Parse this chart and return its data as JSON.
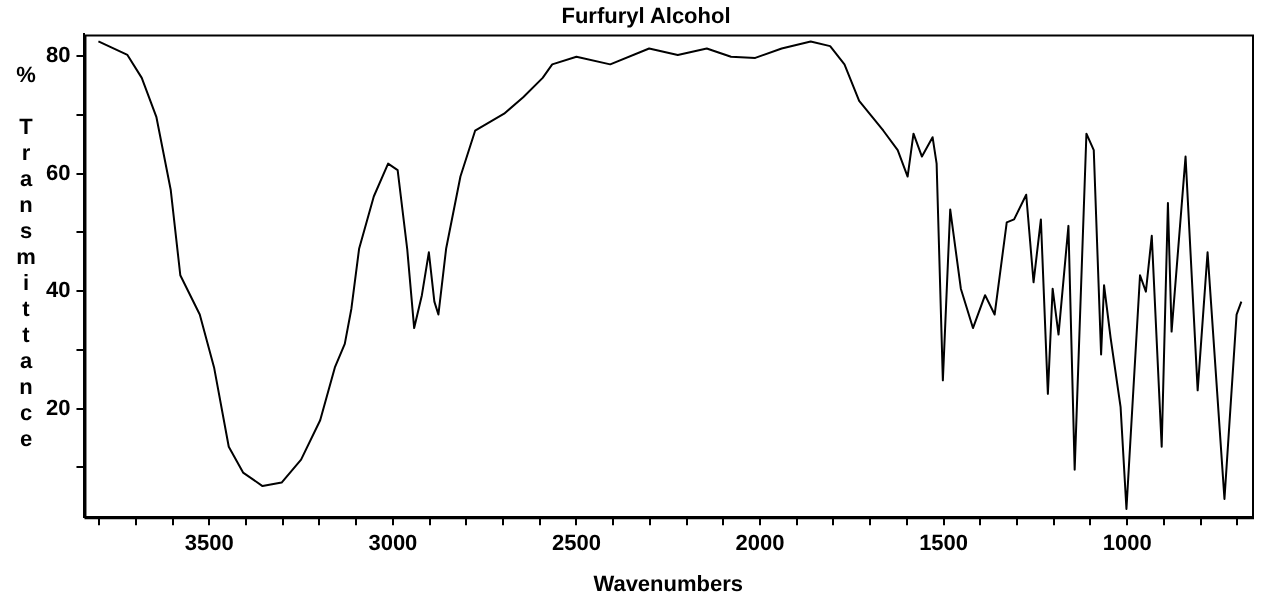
{
  "chart_data": {
    "type": "line",
    "title": "Furfuryl Alcohol",
    "xlabel": "Wavenumbers",
    "ylabel": "% Transmittance",
    "x": [
      3802,
      3723,
      3684,
      3644,
      3605,
      3579,
      3526,
      3487,
      3447,
      3408,
      3355,
      3303,
      3250,
      3198,
      3158,
      3131,
      3113,
      3092,
      3052,
      3013,
      2987,
      2961,
      2942,
      2921,
      2902,
      2887,
      2876,
      2855,
      2816,
      2776,
      2697,
      2645,
      2592,
      2566,
      2500,
      2408,
      2302,
      2224,
      2145,
      2079,
      2013,
      1941,
      1862,
      1809,
      1770,
      1730,
      1664,
      1625,
      1598,
      1582,
      1559,
      1530,
      1519,
      1502,
      1482,
      1453,
      1420,
      1387,
      1361,
      1328,
      1308,
      1275,
      1255,
      1235,
      1216,
      1203,
      1187,
      1160,
      1143,
      1111,
      1091,
      1071,
      1063,
      1045,
      1018,
      1002,
      965,
      949,
      933,
      906,
      889,
      879,
      841,
      808,
      781,
      735,
      702,
      689
    ],
    "series": [
      {
        "color": "#000000",
        "values": [
          82.5,
          80.2,
          76.3,
          69.6,
          57.2,
          42.7,
          36,
          27,
          13.5,
          9.1,
          6.8,
          7.4,
          11.3,
          18,
          27,
          31,
          37,
          47.2,
          56.1,
          61.7,
          60.6,
          47.2,
          33.7,
          39.3,
          46.6,
          38.2,
          36,
          47.2,
          59.5,
          67.3,
          70.2,
          73,
          76.3,
          78.6,
          79.9,
          78.6,
          81.3,
          80.2,
          81.3,
          79.9,
          79.7,
          81.3,
          82.5,
          81.7,
          78.6,
          72.4,
          67.3,
          64,
          59.5,
          66.8,
          62.9,
          66.2,
          61.7,
          24.8,
          53.9,
          40.4,
          33.7,
          39.3,
          36,
          51.7,
          52.2,
          56.4,
          41.5,
          52.2,
          22.5,
          40.4,
          32.6,
          51.1,
          9.6,
          66.8,
          64,
          29.2,
          41,
          32,
          20.3,
          2.9,
          42.7,
          39.9,
          49.4,
          13.5,
          55,
          33.1,
          62.9,
          23.1,
          46.6,
          4.6,
          36,
          38.2
        ]
      }
    ],
    "xlim": [
      3840,
      660
    ],
    "xticks": [
      {
        "value": 3800,
        "label": null
      },
      {
        "value": 3700,
        "label": null
      },
      {
        "value": 3600,
        "label": null
      },
      3500,
      {
        "value": 3400,
        "label": null
      },
      {
        "value": 3300,
        "label": null
      },
      {
        "value": 3200,
        "label": null
      },
      {
        "value": 3100,
        "label": null
      },
      3000,
      {
        "value": 2900,
        "label": null
      },
      {
        "value": 2800,
        "label": null
      },
      {
        "value": 2700,
        "label": null
      },
      {
        "value": 2600,
        "label": null
      },
      2500,
      {
        "value": 2400,
        "label": null
      },
      {
        "value": 2300,
        "label": null
      },
      {
        "value": 2200,
        "label": null
      },
      {
        "value": 2100,
        "label": null
      },
      2000,
      {
        "value": 1900,
        "label": null
      },
      {
        "value": 1800,
        "label": null
      },
      {
        "value": 1700,
        "label": null
      },
      {
        "value": 1600,
        "label": null
      },
      1500,
      {
        "value": 1400,
        "label": null
      },
      {
        "value": 1300,
        "label": null
      },
      {
        "value": 1200,
        "label": null
      },
      {
        "value": 1100,
        "label": null
      },
      1000,
      {
        "value": 900,
        "label": null
      },
      {
        "value": 800,
        "label": null
      },
      {
        "value": 700,
        "label": null
      }
    ],
    "ylim": [
      1.5,
      83.7
    ],
    "yticks": [
      {
        "value": 10,
        "label": null
      },
      20,
      {
        "value": 30,
        "label": null
      },
      40,
      {
        "value": 50,
        "label": null
      },
      60,
      {
        "value": 70,
        "label": null
      },
      80
    ],
    "grid": false,
    "legend": false,
    "marker": "none",
    "line_style": "solid"
  }
}
